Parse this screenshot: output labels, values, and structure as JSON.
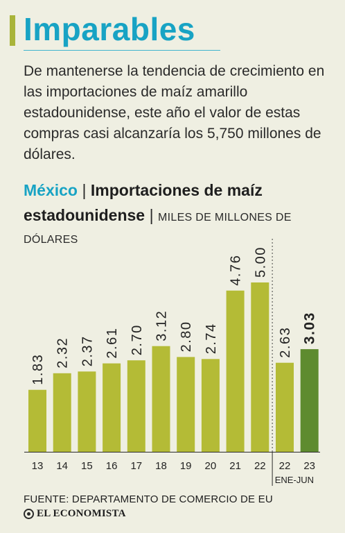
{
  "header": {
    "title": "Imparables",
    "lead": "De mantenerse la tendencia de creci­miento en las importaciones de maíz amarillo estadounidense, este año el valor de estas compras casi alcanzaría los 5,750 millones de dólares."
  },
  "chart_heading": {
    "country": "México",
    "separator": "|",
    "title": "Importaciones de maíz estadounidense",
    "unit": "MILES DE MILLONES DE DÓLARES"
  },
  "colors": {
    "accent": "#18a3c4",
    "bar": "#b4bb36",
    "bar_highlight": "#5e8b2f",
    "background": "#efefe2"
  },
  "chart_data": {
    "type": "bar",
    "title": "Importaciones de maíz estadounidense",
    "unit": "MILES DE MILLONES DE DÓLARES",
    "categories": [
      "13",
      "14",
      "15",
      "16",
      "17",
      "18",
      "19",
      "20",
      "21",
      "22",
      "22",
      "23"
    ],
    "sublabel": "ENE-JUN",
    "values": [
      1.83,
      2.32,
      2.37,
      2.61,
      2.7,
      3.12,
      2.8,
      2.74,
      4.76,
      5.0,
      2.63,
      3.03
    ],
    "value_labels": [
      "1.83",
      "2.32",
      "2.37",
      "2.61",
      "2.70",
      "3.12",
      "2.80",
      "2.74",
      "4.76",
      "5.00",
      "2.63",
      "3.03"
    ],
    "highlight_index": 11,
    "partial_period_start_index": 10,
    "ylim": [
      0,
      5.0
    ],
    "grid": false,
    "legend": "none"
  },
  "footer": {
    "source": "FUENTE: DEPARTAMENTO DE COMERCIO DE EU",
    "brand": "EL ECONOMISTA",
    "brand_icon": "globe-icon"
  }
}
